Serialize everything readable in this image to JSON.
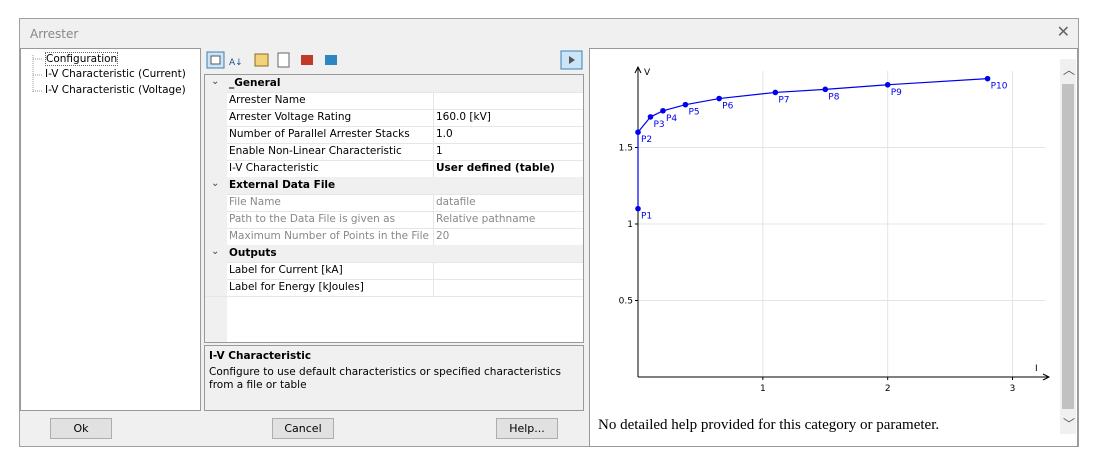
{
  "window": {
    "title": "Arrester"
  },
  "tree": [
    "Configuration",
    "I-V Characteristic (Current)",
    "I-V Characteristic (Voltage)"
  ],
  "property_grid": {
    "categories": [
      {
        "name": "_General",
        "rows": [
          {
            "name": "Arrester Name"
          },
          {
            "name": "Arrester Voltage Rating",
            "value": "160.0 [kV]"
          },
          {
            "name": "Number of Parallel Arrester Stacks",
            "value": "1.0"
          },
          {
            "name": "Enable Non-Linear Characteristic",
            "value": "1"
          },
          {
            "name": "I-V Characteristic",
            "value": "User defined (table)",
            "bold": true
          }
        ]
      },
      {
        "name": "External Data File",
        "rows": [
          {
            "name": "File Name",
            "value": "datafile",
            "disabled": true
          },
          {
            "name": "Path to the Data File is given as",
            "value": "Relative pathname",
            "disabled": true
          },
          {
            "name": "Maximum Number of Points in the File",
            "value": "20",
            "disabled": true
          }
        ]
      },
      {
        "name": "Outputs",
        "rows": [
          {
            "name": "Label for Current [kA]"
          },
          {
            "name": "Label for Energy [kJoules]"
          }
        ]
      }
    ]
  },
  "description": {
    "title": "I-V Characteristic",
    "text": "Configure to use default characteristics or specified characteristics from a file or table"
  },
  "help_text": "No detailed help provided for this category or parameter.",
  "buttons": [
    "Ok",
    "Cancel",
    "Help..."
  ],
  "chart_data": {
    "type": "line",
    "xlabel": "I",
    "ylabel": "V",
    "color": "#0000ee",
    "grid": true,
    "x": [
      0,
      0,
      0.1,
      0.2,
      0.38,
      0.65,
      1.1,
      1.5,
      2.0,
      2.8
    ],
    "values": [
      1.1,
      1.6,
      1.7,
      1.74,
      1.78,
      1.82,
      1.86,
      1.88,
      1.91,
      1.95
    ],
    "point_labels": [
      "P1",
      "P2",
      "P3",
      "P4",
      "P5",
      "P6",
      "P7",
      "P8",
      "P9",
      "P10"
    ],
    "xlim": [
      0,
      3.26
    ],
    "ylim": [
      0,
      2.0
    ],
    "xticks": [
      1,
      2,
      3
    ],
    "yticks": [
      0.5,
      1,
      1.5
    ]
  }
}
